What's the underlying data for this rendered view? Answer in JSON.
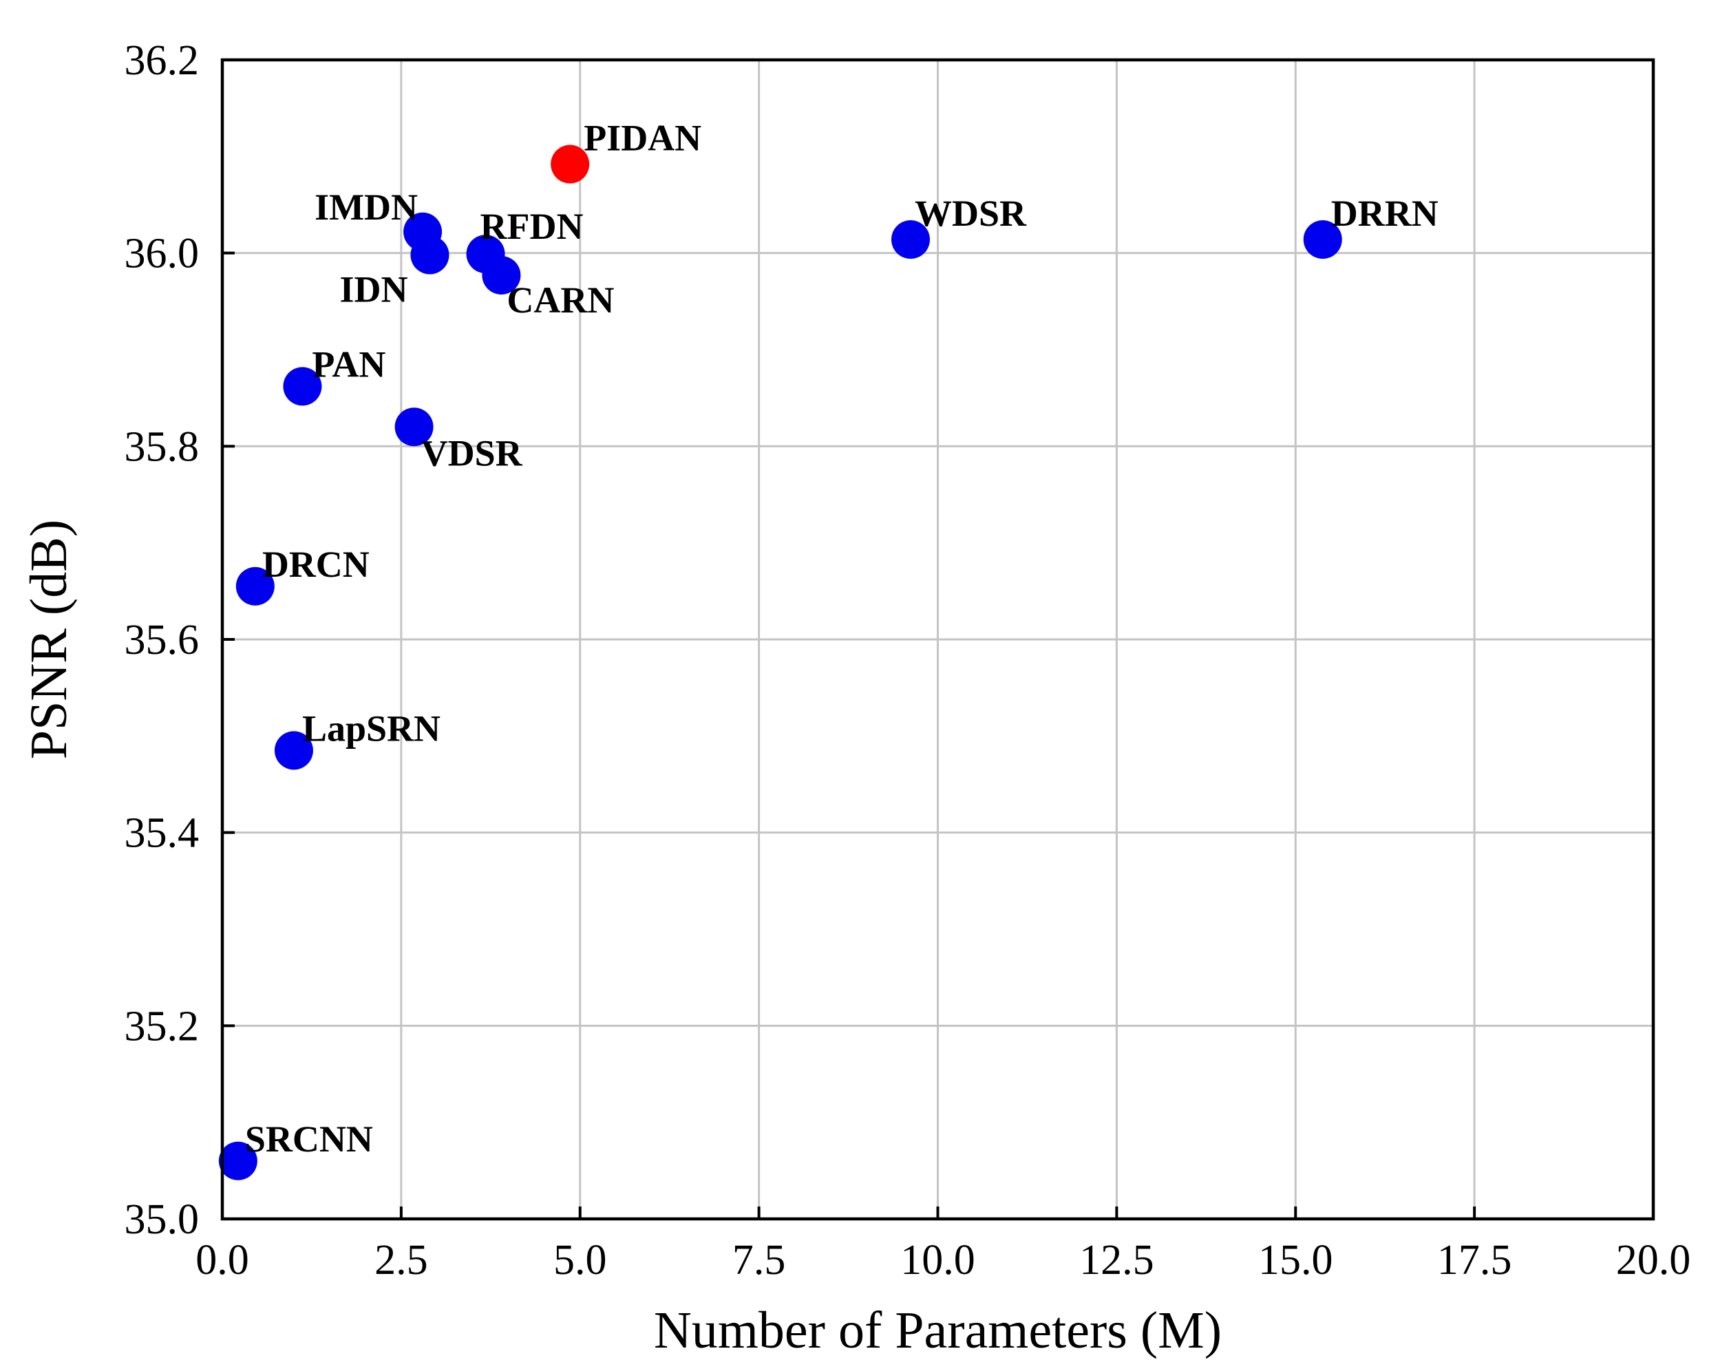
{
  "chart_data": {
    "type": "scatter",
    "title": "",
    "xlabel": "Number of Parameters (M)",
    "ylabel": "PSNR (dB)",
    "xlim": [
      0.0,
      20.0
    ],
    "ylim": [
      35.0,
      36.2
    ],
    "x_ticks": [
      0.0,
      2.5,
      5.0,
      7.5,
      10.0,
      12.5,
      15.0,
      17.5,
      20.0
    ],
    "x_tick_labels": [
      "0.0",
      "2.5",
      "5.0",
      "7.5",
      "10.0",
      "12.5",
      "15.0",
      "17.5",
      "20.0"
    ],
    "y_ticks": [
      35.0,
      35.2,
      35.4,
      35.6,
      35.8,
      36.0,
      36.2
    ],
    "y_tick_labels": [
      "35.0",
      "35.2",
      "35.4",
      "35.6",
      "35.8",
      "36.0",
      "36.2"
    ],
    "grid": true,
    "colors": {
      "default_point": "#0000ee",
      "highlight_point": "#ff0000",
      "grid": "#c4c4c4",
      "axis": "#000000"
    },
    "points": [
      {
        "label": "SRCNN",
        "x": 0.22,
        "y": 35.06,
        "highlight": false
      },
      {
        "label": "LapSRN",
        "x": 1.0,
        "y": 35.485,
        "highlight": false
      },
      {
        "label": "DRCN",
        "x": 0.46,
        "y": 35.655,
        "highlight": false
      },
      {
        "label": "PAN",
        "x": 1.12,
        "y": 35.862,
        "highlight": false
      },
      {
        "label": "VDSR",
        "x": 2.68,
        "y": 35.82,
        "highlight": false
      },
      {
        "label": "IMDN",
        "x": 2.8,
        "y": 36.022,
        "highlight": false
      },
      {
        "label": "IDN",
        "x": 2.9,
        "y": 35.998,
        "highlight": false
      },
      {
        "label": "RFDN",
        "x": 3.68,
        "y": 35.999,
        "highlight": false
      },
      {
        "label": "CARN",
        "x": 3.9,
        "y": 35.977,
        "highlight": false
      },
      {
        "label": "PIDAN",
        "x": 4.86,
        "y": 36.092,
        "highlight": true
      },
      {
        "label": "WDSR",
        "x": 9.62,
        "y": 36.014,
        "highlight": false
      },
      {
        "label": "DRRN",
        "x": 15.38,
        "y": 36.014,
        "highlight": false
      }
    ]
  }
}
